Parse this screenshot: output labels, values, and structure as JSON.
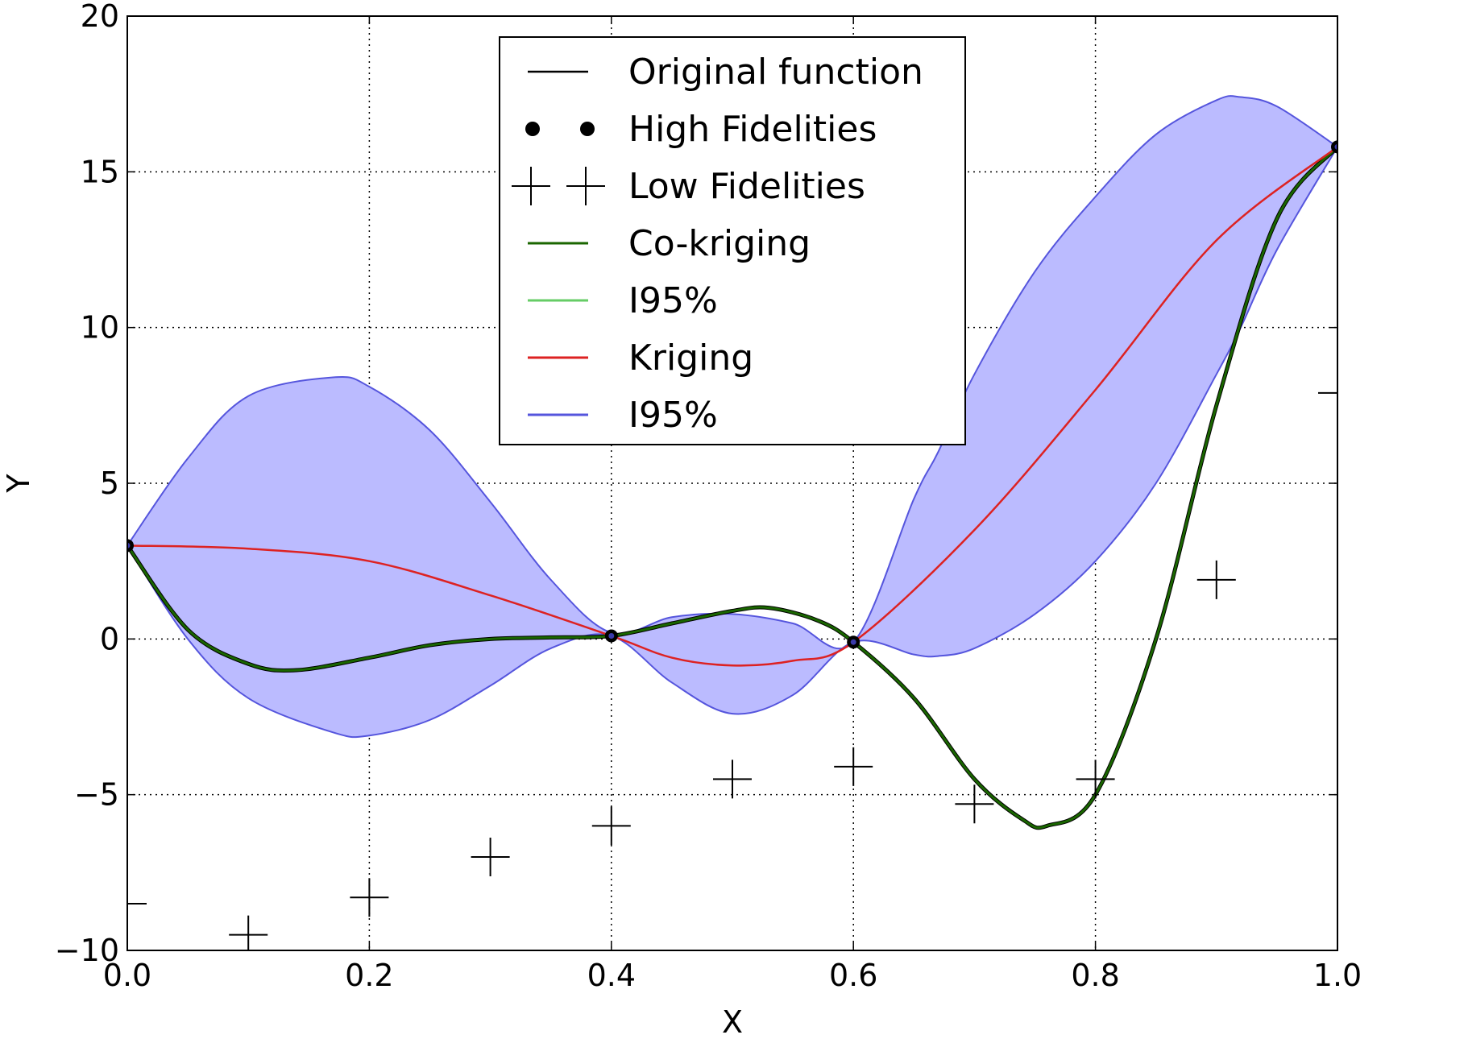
{
  "chart_data": {
    "type": "line",
    "xlabel": "X",
    "ylabel": "Y",
    "xlim": [
      0.0,
      1.0
    ],
    "ylim": [
      -10,
      20
    ],
    "xticks": [
      0.0,
      0.2,
      0.4,
      0.6,
      0.8,
      1.0
    ],
    "xtick_labels": [
      "0.0",
      "0.2",
      "0.4",
      "0.6",
      "0.8",
      "1.0"
    ],
    "yticks": [
      -10,
      -5,
      0,
      5,
      10,
      15,
      20
    ],
    "ytick_labels": [
      "−10",
      "−5",
      "0",
      "5",
      "10",
      "15",
      "20"
    ],
    "grid": true,
    "legend_position": "top-center",
    "legend": [
      {
        "label": "Original function",
        "marker": "line",
        "color": "#000000"
      },
      {
        "label": "High Fidelities",
        "marker": "dot",
        "color": "#000000"
      },
      {
        "label": "Low Fidelities",
        "marker": "plus",
        "color": "#000000"
      },
      {
        "label": "Co-kriging",
        "marker": "line",
        "color": "#1a6600"
      },
      {
        "label": "I95%",
        "marker": "line",
        "color": "#66cc66"
      },
      {
        "label": "Kriging",
        "marker": "line",
        "color": "#dd2222"
      },
      {
        "label": "I95%",
        "marker": "line",
        "color": "#5555dd"
      }
    ],
    "series": [
      {
        "name": "Original function",
        "color": "#000000",
        "x": [
          0,
          0.05,
          0.1,
          0.14,
          0.2,
          0.25,
          0.3,
          0.35,
          0.4,
          0.45,
          0.5,
          0.53,
          0.57,
          0.6,
          0.65,
          0.7,
          0.74,
          0.76,
          0.8,
          0.85,
          0.9,
          0.95,
          1.0
        ],
        "y": [
          3.0,
          0.3,
          -0.8,
          -1.0,
          -0.6,
          -0.2,
          0.0,
          0.05,
          0.1,
          0.5,
          0.9,
          1.0,
          0.6,
          -0.1,
          -1.9,
          -4.5,
          -5.8,
          -6.0,
          -5.0,
          0.0,
          7.5,
          13.5,
          15.8
        ]
      },
      {
        "name": "Co-kriging",
        "color": "#1a6600",
        "x": [
          0,
          0.05,
          0.1,
          0.14,
          0.2,
          0.25,
          0.3,
          0.35,
          0.4,
          0.45,
          0.5,
          0.53,
          0.57,
          0.6,
          0.65,
          0.7,
          0.74,
          0.76,
          0.8,
          0.85,
          0.9,
          0.95,
          1.0
        ],
        "y": [
          3.0,
          0.3,
          -0.8,
          -1.0,
          -0.6,
          -0.2,
          0.0,
          0.05,
          0.1,
          0.5,
          0.9,
          1.0,
          0.6,
          -0.1,
          -1.9,
          -4.5,
          -5.8,
          -6.0,
          -5.0,
          0.0,
          7.5,
          13.5,
          15.8
        ]
      },
      {
        "name": "Kriging",
        "color": "#dd2222",
        "x": [
          0,
          0.1,
          0.2,
          0.3,
          0.4,
          0.45,
          0.5,
          0.55,
          0.6,
          0.7,
          0.8,
          0.9,
          1.0
        ],
        "y": [
          3.0,
          2.9,
          2.5,
          1.4,
          0.1,
          -0.6,
          -0.85,
          -0.7,
          -0.1,
          3.5,
          8.0,
          12.8,
          15.8
        ]
      }
    ],
    "kriging_interval": {
      "color": "#5555dd",
      "fill": "#bbbbff",
      "x": [
        0,
        0.05,
        0.1,
        0.17,
        0.2,
        0.25,
        0.3,
        0.35,
        0.4,
        0.45,
        0.5,
        0.55,
        0.6,
        0.65,
        0.67,
        0.7,
        0.75,
        0.8,
        0.85,
        0.9,
        0.92,
        0.95,
        1.0
      ],
      "upper": [
        3.0,
        5.8,
        7.8,
        8.4,
        8.1,
        6.7,
        4.4,
        1.9,
        0.2,
        0.7,
        0.8,
        0.5,
        -0.1,
        4.5,
        6.0,
        8.5,
        11.8,
        14.2,
        16.2,
        17.3,
        17.4,
        17.1,
        15.8
      ],
      "lower": [
        3.0,
        0.0,
        -1.9,
        -3.0,
        -3.1,
        -2.6,
        -1.5,
        -0.3,
        0.1,
        -1.4,
        -2.4,
        -1.8,
        -0.1,
        -0.5,
        -0.55,
        -0.3,
        0.8,
        2.5,
        5.0,
        8.5,
        10.0,
        12.5,
        15.8
      ]
    },
    "high_fidelities": {
      "x": [
        0.0,
        0.4,
        0.6,
        1.0
      ],
      "y": [
        3.0,
        0.1,
        -0.1,
        15.8
      ]
    },
    "low_fidelities": {
      "x": [
        0.0,
        0.1,
        0.2,
        0.3,
        0.4,
        0.5,
        0.6,
        0.7,
        0.8,
        0.9,
        1.0
      ],
      "y": [
        -8.5,
        -9.5,
        -8.3,
        -7.0,
        -6.0,
        -4.5,
        -4.1,
        -5.3,
        -4.5,
        1.9,
        7.9
      ]
    }
  }
}
